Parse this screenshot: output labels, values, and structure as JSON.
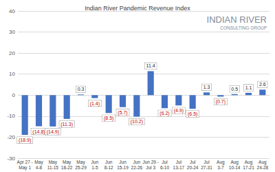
{
  "chart_data": {
    "type": "bar",
    "title": "Indian River Pandemic Revenue Index",
    "annotations": [
      "INDIAN RIVER",
      "CONSULTING GROUP"
    ],
    "categories": [
      "Apr 27 -\nMay 1",
      "May\n4-8",
      "May\n11-15",
      "May\n18-22",
      "May\n25-29",
      "Jun\n1-5",
      "Jun\n8-12",
      "Jun\n15-19",
      "Jun\n22-26",
      "Jun 29 -\nJul 3",
      "Jul\n6-10",
      "Jul\n13-17",
      "Jul\n20-24",
      "Jul\n27-31",
      "Aug\n3-7",
      "Aug\n10-14",
      "Aug\n17-21",
      "Aug\n24-28"
    ],
    "values": [
      -18.9,
      -14.8,
      -14.9,
      -11.3,
      0.3,
      -1.4,
      -8.5,
      -5.7,
      -10.2,
      11.4,
      -6.2,
      -4.9,
      -6.5,
      1.3,
      -0.7,
      0.5,
      1.1,
      2.6
    ],
    "value_labels": [
      "(18.9)",
      "(14.8)",
      "(14.9)",
      "(11.3)",
      "0.3",
      "(1.4)",
      "(8.5)",
      "(5.7)",
      "(10.2)",
      "11.4",
      "(6.2)",
      "(4.9)",
      "(6.5)",
      "1.3",
      "(0.7)",
      "0.5",
      "1.1",
      "2.6"
    ],
    "color": "#4472c4",
    "data_labels": true,
    "ylim": [
      -30,
      40
    ],
    "yticks": [
      -30,
      -20,
      -10,
      0,
      10,
      20,
      30,
      40
    ],
    "grid": true
  }
}
